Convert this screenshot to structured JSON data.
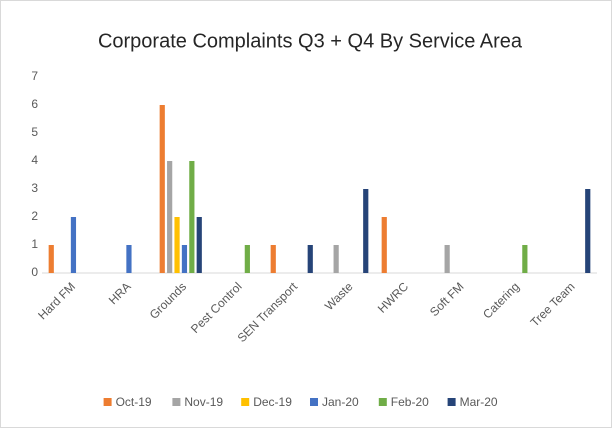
{
  "chart_data": {
    "type": "bar",
    "title": "Corporate Complaints Q3 + Q4 By Service Area",
    "categories": [
      "Hard FM",
      "HRA",
      "Grounds",
      "Pest Control",
      "SEN Transport",
      "Waste",
      "HWRC",
      "Soft FM",
      "Catering",
      "Tree Team"
    ],
    "series": [
      {
        "name": "Oct-19",
        "color": "#ed7d31",
        "values": [
          1,
          0,
          6,
          0,
          1,
          0,
          2,
          0,
          0,
          0
        ]
      },
      {
        "name": "Nov-19",
        "color": "#a5a5a5",
        "values": [
          0,
          0,
          4,
          0,
          0,
          1,
          0,
          1,
          0,
          0
        ]
      },
      {
        "name": "Dec-19",
        "color": "#ffc000",
        "values": [
          0,
          0,
          2,
          0,
          0,
          0,
          0,
          0,
          0,
          0
        ]
      },
      {
        "name": "Jan-20",
        "color": "#4472c4",
        "values": [
          2,
          1,
          1,
          0,
          0,
          0,
          0,
          0,
          0,
          0
        ]
      },
      {
        "name": "Feb-20",
        "color": "#70ad47",
        "values": [
          0,
          0,
          4,
          1,
          0,
          0,
          0,
          0,
          1,
          0
        ]
      },
      {
        "name": "Mar-20",
        "color": "#264478",
        "values": [
          0,
          0,
          2,
          0,
          1,
          3,
          0,
          0,
          0,
          3
        ]
      }
    ],
    "ylim": [
      0,
      7
    ],
    "yticks": [
      0,
      1,
      2,
      3,
      4,
      5,
      6,
      7
    ],
    "grid": false,
    "legend": "bottom"
  }
}
